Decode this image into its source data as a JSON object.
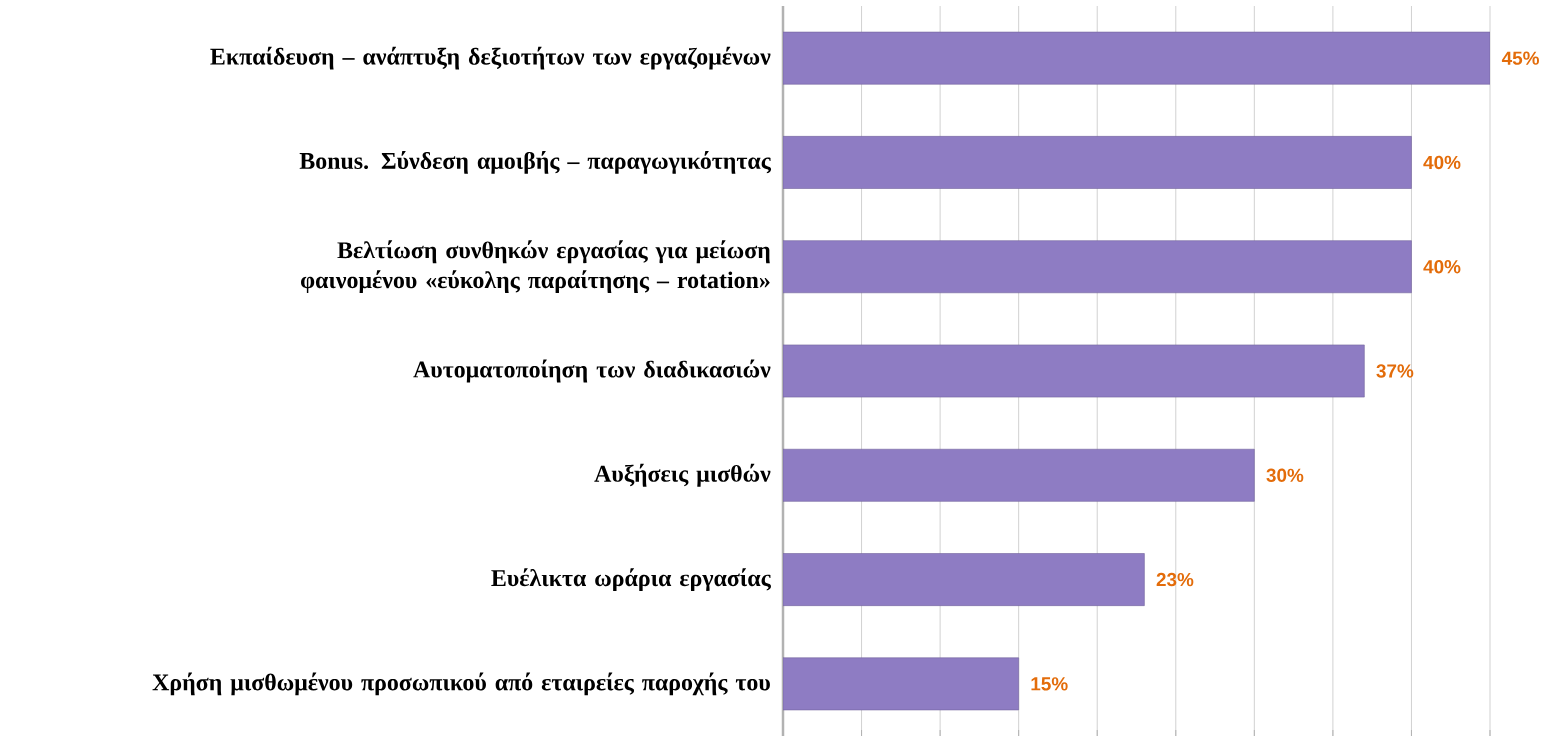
{
  "chart_data": {
    "type": "bar",
    "orientation": "horizontal",
    "categories": [
      "Εκπαίδευση – ανάπτυξη δεξιοτήτων των εργαζομένων",
      "Bonus. Σύνδεση αμοιβής – παραγωγικότητας",
      "Βελτίωση συνθηκών εργασίας για μείωση φαινομένου «εύκολης παραίτησης – rotation»",
      "Αυτοματοποίηση των διαδικασιών",
      "Αυξήσεις μισθών",
      "Ευέλικτα ωράρια εργασίας",
      "Χρήση μισθωμένου προσωπικού από εταιρείες παροχής του"
    ],
    "values": [
      45,
      40,
      40,
      37,
      30,
      23,
      15
    ],
    "value_labels": [
      "45%",
      "40%",
      "40%",
      "37%",
      "30%",
      "23%",
      "15%"
    ],
    "color": "#8e7cc3",
    "xlim": [
      0,
      45
    ],
    "xticks": [
      {
        "value": 0,
        "label": null
      },
      {
        "value": 5,
        "label": null
      },
      {
        "value": 10,
        "label": null
      },
      {
        "value": 15,
        "label": null
      },
      {
        "value": 20,
        "label": null
      },
      {
        "value": 25,
        "label": null
      },
      {
        "value": 30,
        "label": null
      },
      {
        "value": 35,
        "label": null
      },
      {
        "value": 40,
        "label": null
      },
      {
        "value": 45,
        "label": null
      }
    ],
    "grid": "x",
    "tick_labels": "y"
  }
}
